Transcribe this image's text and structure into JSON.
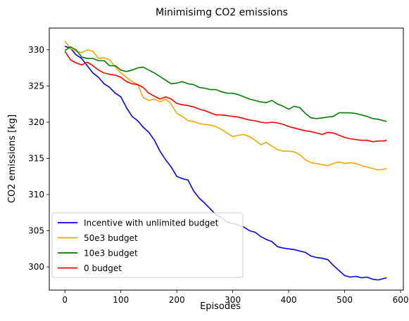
{
  "chart_data": {
    "type": "line",
    "title": "Minimisimg CO2 emissions",
    "xlabel": "Episodes",
    "ylabel": "CO2 emissions [kg]",
    "xlim": [
      -28,
      605
    ],
    "ylim": [
      296.8,
      333.0
    ],
    "xticks": [
      0,
      100,
      200,
      300,
      400,
      500,
      600
    ],
    "yticks": [
      300,
      305,
      310,
      315,
      320,
      325,
      330
    ],
    "grid": false,
    "legend": "lower-left",
    "series": [
      {
        "name": "Incentive with unlimited budget",
        "color": "#0000ff",
        "points": [
          [
            0,
            330.5
          ],
          [
            10,
            330.2
          ],
          [
            20,
            329.3
          ],
          [
            30,
            328.8
          ],
          [
            40,
            327.8
          ],
          [
            50,
            326.8
          ],
          [
            60,
            326.2
          ],
          [
            70,
            325.3
          ],
          [
            80,
            324.8
          ],
          [
            90,
            324.0
          ],
          [
            100,
            323.5
          ],
          [
            110,
            322.0
          ],
          [
            120,
            320.8
          ],
          [
            130,
            320.2
          ],
          [
            140,
            319.3
          ],
          [
            150,
            318.6
          ],
          [
            160,
            317.5
          ],
          [
            170,
            316.0
          ],
          [
            180,
            314.8
          ],
          [
            190,
            313.8
          ],
          [
            200,
            312.5
          ],
          [
            210,
            312.2
          ],
          [
            220,
            312.0
          ],
          [
            230,
            310.5
          ],
          [
            240,
            309.5
          ],
          [
            250,
            308.8
          ],
          [
            260,
            308.0
          ],
          [
            270,
            307.2
          ],
          [
            280,
            306.8
          ],
          [
            290,
            306.2
          ],
          [
            300,
            306.0
          ],
          [
            310,
            305.8
          ],
          [
            320,
            305.5
          ],
          [
            330,
            305.0
          ],
          [
            340,
            304.8
          ],
          [
            350,
            304.2
          ],
          [
            360,
            303.8
          ],
          [
            370,
            303.5
          ],
          [
            380,
            302.8
          ],
          [
            390,
            302.6
          ],
          [
            400,
            302.5
          ],
          [
            410,
            302.4
          ],
          [
            420,
            302.2
          ],
          [
            430,
            302.0
          ],
          [
            440,
            301.5
          ],
          [
            450,
            301.3
          ],
          [
            460,
            301.2
          ],
          [
            470,
            301.0
          ],
          [
            480,
            300.2
          ],
          [
            490,
            299.5
          ],
          [
            500,
            298.8
          ],
          [
            510,
            298.6
          ],
          [
            520,
            298.7
          ],
          [
            530,
            298.5
          ],
          [
            540,
            298.6
          ],
          [
            550,
            298.3
          ],
          [
            560,
            298.2
          ],
          [
            570,
            298.4
          ],
          [
            575,
            298.5
          ]
        ]
      },
      {
        "name": "50e3 budget",
        "color": "#ffa500",
        "points": [
          [
            0,
            331.2
          ],
          [
            10,
            330.2
          ],
          [
            20,
            329.8
          ],
          [
            30,
            329.6
          ],
          [
            40,
            330.0
          ],
          [
            50,
            329.8
          ],
          [
            60,
            328.8
          ],
          [
            70,
            328.9
          ],
          [
            80,
            328.6
          ],
          [
            90,
            327.6
          ],
          [
            100,
            326.8
          ],
          [
            110,
            326.2
          ],
          [
            120,
            325.6
          ],
          [
            130,
            325.2
          ],
          [
            140,
            323.4
          ],
          [
            150,
            323.0
          ],
          [
            160,
            323.2
          ],
          [
            170,
            322.8
          ],
          [
            180,
            323.2
          ],
          [
            190,
            322.5
          ],
          [
            200,
            321.2
          ],
          [
            210,
            320.8
          ],
          [
            220,
            320.2
          ],
          [
            230,
            320.1
          ],
          [
            240,
            319.8
          ],
          [
            250,
            319.7
          ],
          [
            260,
            319.6
          ],
          [
            270,
            319.4
          ],
          [
            280,
            319.0
          ],
          [
            290,
            318.5
          ],
          [
            300,
            318.0
          ],
          [
            310,
            318.2
          ],
          [
            320,
            318.3
          ],
          [
            330,
            318.0
          ],
          [
            340,
            317.5
          ],
          [
            350,
            316.9
          ],
          [
            360,
            317.2
          ],
          [
            370,
            316.7
          ],
          [
            380,
            316.2
          ],
          [
            390,
            316.0
          ],
          [
            400,
            316.0
          ],
          [
            410,
            315.9
          ],
          [
            420,
            315.5
          ],
          [
            430,
            314.8
          ],
          [
            440,
            314.4
          ],
          [
            450,
            314.3
          ],
          [
            460,
            314.1
          ],
          [
            470,
            314.0
          ],
          [
            480,
            314.3
          ],
          [
            490,
            314.5
          ],
          [
            500,
            314.3
          ],
          [
            510,
            314.4
          ],
          [
            520,
            314.3
          ],
          [
            530,
            314.0
          ],
          [
            540,
            313.8
          ],
          [
            550,
            313.6
          ],
          [
            560,
            313.4
          ],
          [
            570,
            313.5
          ],
          [
            575,
            313.6
          ]
        ]
      },
      {
        "name": "10e3 budget",
        "color": "#008000",
        "points": [
          [
            0,
            329.9
          ],
          [
            10,
            330.4
          ],
          [
            20,
            330.0
          ],
          [
            30,
            329.0
          ],
          [
            40,
            328.8
          ],
          [
            50,
            328.8
          ],
          [
            60,
            328.5
          ],
          [
            70,
            328.5
          ],
          [
            80,
            327.8
          ],
          [
            90,
            327.8
          ],
          [
            100,
            327.2
          ],
          [
            110,
            327.0
          ],
          [
            120,
            327.2
          ],
          [
            130,
            327.5
          ],
          [
            140,
            327.6
          ],
          [
            150,
            327.2
          ],
          [
            160,
            326.8
          ],
          [
            170,
            326.3
          ],
          [
            180,
            325.8
          ],
          [
            190,
            325.3
          ],
          [
            200,
            325.4
          ],
          [
            210,
            325.6
          ],
          [
            220,
            325.3
          ],
          [
            230,
            325.2
          ],
          [
            240,
            324.8
          ],
          [
            250,
            324.7
          ],
          [
            260,
            324.5
          ],
          [
            270,
            324.5
          ],
          [
            280,
            324.2
          ],
          [
            290,
            324.0
          ],
          [
            300,
            324.0
          ],
          [
            310,
            323.8
          ],
          [
            320,
            323.5
          ],
          [
            330,
            323.2
          ],
          [
            340,
            323.0
          ],
          [
            350,
            322.8
          ],
          [
            360,
            322.7
          ],
          [
            370,
            323.0
          ],
          [
            380,
            322.5
          ],
          [
            390,
            322.2
          ],
          [
            400,
            321.8
          ],
          [
            410,
            322.2
          ],
          [
            420,
            322.0
          ],
          [
            430,
            321.2
          ],
          [
            440,
            320.6
          ],
          [
            450,
            320.5
          ],
          [
            460,
            320.6
          ],
          [
            470,
            320.7
          ],
          [
            480,
            320.8
          ],
          [
            490,
            321.3
          ],
          [
            500,
            321.3
          ],
          [
            510,
            321.3
          ],
          [
            520,
            321.2
          ],
          [
            530,
            321.0
          ],
          [
            540,
            320.8
          ],
          [
            550,
            320.5
          ],
          [
            560,
            320.4
          ],
          [
            570,
            320.2
          ],
          [
            575,
            320.1
          ]
        ]
      },
      {
        "name": "0 budget",
        "color": "#ff0000",
        "points": [
          [
            0,
            329.8
          ],
          [
            10,
            328.6
          ],
          [
            20,
            328.2
          ],
          [
            30,
            327.9
          ],
          [
            40,
            328.3
          ],
          [
            50,
            327.8
          ],
          [
            60,
            327.2
          ],
          [
            70,
            326.8
          ],
          [
            80,
            326.6
          ],
          [
            90,
            326.5
          ],
          [
            100,
            326.2
          ],
          [
            110,
            325.6
          ],
          [
            120,
            325.3
          ],
          [
            130,
            325.2
          ],
          [
            140,
            324.8
          ],
          [
            150,
            324.0
          ],
          [
            160,
            323.6
          ],
          [
            170,
            323.2
          ],
          [
            180,
            323.5
          ],
          [
            190,
            323.2
          ],
          [
            200,
            322.6
          ],
          [
            210,
            322.4
          ],
          [
            220,
            322.3
          ],
          [
            230,
            322.1
          ],
          [
            240,
            321.8
          ],
          [
            250,
            321.6
          ],
          [
            260,
            321.3
          ],
          [
            270,
            321.0
          ],
          [
            280,
            321.0
          ],
          [
            290,
            320.9
          ],
          [
            300,
            320.8
          ],
          [
            310,
            320.7
          ],
          [
            320,
            320.5
          ],
          [
            330,
            320.3
          ],
          [
            340,
            320.2
          ],
          [
            350,
            320.0
          ],
          [
            360,
            319.9
          ],
          [
            370,
            320.0
          ],
          [
            380,
            319.9
          ],
          [
            390,
            319.7
          ],
          [
            400,
            319.4
          ],
          [
            410,
            319.2
          ],
          [
            420,
            319.0
          ],
          [
            430,
            318.8
          ],
          [
            440,
            318.7
          ],
          [
            450,
            318.5
          ],
          [
            460,
            318.3
          ],
          [
            470,
            318.6
          ],
          [
            480,
            318.5
          ],
          [
            490,
            318.2
          ],
          [
            500,
            317.9
          ],
          [
            510,
            317.7
          ],
          [
            520,
            317.6
          ],
          [
            530,
            317.5
          ],
          [
            540,
            317.5
          ],
          [
            550,
            317.3
          ],
          [
            560,
            317.4
          ],
          [
            570,
            317.4
          ],
          [
            575,
            317.5
          ]
        ]
      }
    ]
  }
}
